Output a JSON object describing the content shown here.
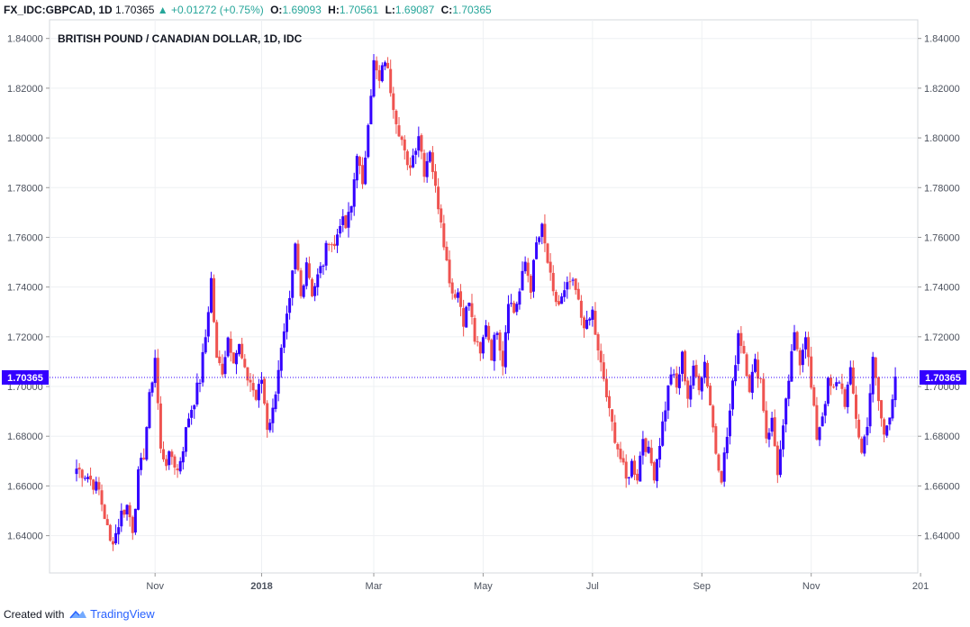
{
  "header": {
    "symbol": "FX_IDC:GBPCAD, 1D",
    "last": "1.70365",
    "arrow": "▲",
    "change": "+0.01272 (+0.75%)",
    "o_label": "O:",
    "o": "1.69093",
    "h_label": "H:",
    "h": "1.70561",
    "l_label": "L:",
    "l": "1.69087",
    "c_label": "C:",
    "c": "1.70365"
  },
  "footer": {
    "created": "Created with",
    "brand": "TradingView"
  },
  "chart_data": {
    "type": "candlestick",
    "title": "BRITISH POUND / CANADIAN DOLLAR, 1D, IDC",
    "ylim": [
      1.625,
      1.8475
    ],
    "yticks": [
      "1.64000",
      "1.66000",
      "1.68000",
      "1.70000",
      "1.72000",
      "1.74000",
      "1.76000",
      "1.78000",
      "1.80000",
      "1.82000",
      "1.84000"
    ],
    "xlim": [
      0,
      300
    ],
    "xticks": [
      {
        "label": "Nov",
        "x": 28
      },
      {
        "label": "2018",
        "x": 66
      },
      {
        "label": "Mar",
        "x": 106
      },
      {
        "label": "May",
        "x": 145
      },
      {
        "label": "Jul",
        "x": 184
      },
      {
        "label": "Sep",
        "x": 223
      },
      {
        "label": "Nov",
        "x": 262
      },
      {
        "label": "201",
        "x": 301
      }
    ],
    "current_price": "1.70365",
    "current_value": 1.70365,
    "up_color": "#3300ff",
    "down_color": "#ef5350",
    "grid": true,
    "path": [
      [
        0,
        1.667
      ],
      [
        4,
        1.664
      ],
      [
        8,
        1.658
      ],
      [
        10,
        1.648
      ],
      [
        12,
        1.637
      ],
      [
        14,
        1.641
      ],
      [
        16,
        1.649
      ],
      [
        18,
        1.652
      ],
      [
        20,
        1.643
      ],
      [
        22,
        1.664
      ],
      [
        24,
        1.673
      ],
      [
        26,
        1.695
      ],
      [
        28,
        1.712
      ],
      [
        30,
        1.674
      ],
      [
        32,
        1.67
      ],
      [
        34,
        1.672
      ],
      [
        36,
        1.666
      ],
      [
        38,
        1.676
      ],
      [
        40,
        1.688
      ],
      [
        42,
        1.695
      ],
      [
        44,
        1.703
      ],
      [
        46,
        1.72
      ],
      [
        48,
        1.743
      ],
      [
        50,
        1.71
      ],
      [
        52,
        1.707
      ],
      [
        54,
        1.72
      ],
      [
        56,
        1.712
      ],
      [
        58,
        1.716
      ],
      [
        60,
        1.705
      ],
      [
        62,
        1.702
      ],
      [
        64,
        1.695
      ],
      [
        66,
        1.703
      ],
      [
        68,
        1.684
      ],
      [
        70,
        1.69
      ],
      [
        72,
        1.708
      ],
      [
        74,
        1.72
      ],
      [
        76,
        1.733
      ],
      [
        78,
        1.756
      ],
      [
        80,
        1.736
      ],
      [
        82,
        1.751
      ],
      [
        84,
        1.738
      ],
      [
        86,
        1.744
      ],
      [
        88,
        1.75
      ],
      [
        90,
        1.76
      ],
      [
        92,
        1.756
      ],
      [
        94,
        1.767
      ],
      [
        96,
        1.764
      ],
      [
        98,
        1.772
      ],
      [
        100,
        1.795
      ],
      [
        102,
        1.779
      ],
      [
        104,
        1.808
      ],
      [
        106,
        1.83
      ],
      [
        108,
        1.822
      ],
      [
        110,
        1.832
      ],
      [
        112,
        1.82
      ],
      [
        114,
        1.808
      ],
      [
        116,
        1.799
      ],
      [
        118,
        1.787
      ],
      [
        120,
        1.793
      ],
      [
        122,
        1.802
      ],
      [
        124,
        1.787
      ],
      [
        126,
        1.796
      ],
      [
        128,
        1.779
      ],
      [
        130,
        1.768
      ],
      [
        132,
        1.75
      ],
      [
        134,
        1.738
      ],
      [
        136,
        1.738
      ],
      [
        138,
        1.727
      ],
      [
        140,
        1.734
      ],
      [
        142,
        1.719
      ],
      [
        144,
        1.712
      ],
      [
        146,
        1.726
      ],
      [
        148,
        1.713
      ],
      [
        150,
        1.724
      ],
      [
        152,
        1.71
      ],
      [
        154,
        1.736
      ],
      [
        156,
        1.73
      ],
      [
        158,
        1.738
      ],
      [
        160,
        1.75
      ],
      [
        162,
        1.74
      ],
      [
        164,
        1.757
      ],
      [
        166,
        1.763
      ],
      [
        168,
        1.75
      ],
      [
        170,
        1.736
      ],
      [
        172,
        1.733
      ],
      [
        174,
        1.737
      ],
      [
        176,
        1.742
      ],
      [
        178,
        1.738
      ],
      [
        180,
        1.728
      ],
      [
        182,
        1.724
      ],
      [
        184,
        1.73
      ],
      [
        186,
        1.713
      ],
      [
        188,
        1.703
      ],
      [
        190,
        1.689
      ],
      [
        192,
        1.68
      ],
      [
        194,
        1.671
      ],
      [
        196,
        1.662
      ],
      [
        198,
        1.669
      ],
      [
        200,
        1.664
      ],
      [
        202,
        1.68
      ],
      [
        204,
        1.673
      ],
      [
        206,
        1.665
      ],
      [
        208,
        1.678
      ],
      [
        210,
        1.692
      ],
      [
        212,
        1.706
      ],
      [
        214,
        1.699
      ],
      [
        216,
        1.712
      ],
      [
        218,
        1.696
      ],
      [
        220,
        1.706
      ],
      [
        222,
        1.701
      ],
      [
        224,
        1.71
      ],
      [
        226,
        1.693
      ],
      [
        228,
        1.674
      ],
      [
        230,
        1.664
      ],
      [
        232,
        1.68
      ],
      [
        234,
        1.7
      ],
      [
        236,
        1.722
      ],
      [
        238,
        1.714
      ],
      [
        240,
        1.7
      ],
      [
        242,
        1.709
      ],
      [
        244,
        1.703
      ],
      [
        246,
        1.68
      ],
      [
        248,
        1.686
      ],
      [
        250,
        1.666
      ],
      [
        252,
        1.682
      ],
      [
        254,
        1.703
      ],
      [
        256,
        1.72
      ],
      [
        258,
        1.711
      ],
      [
        260,
        1.722
      ],
      [
        262,
        1.699
      ],
      [
        264,
        1.68
      ],
      [
        266,
        1.689
      ],
      [
        268,
        1.701
      ],
      [
        270,
        1.698
      ],
      [
        272,
        1.703
      ],
      [
        274,
        1.694
      ],
      [
        276,
        1.705
      ],
      [
        278,
        1.688
      ],
      [
        280,
        1.673
      ],
      [
        282,
        1.686
      ],
      [
        284,
        1.71
      ],
      [
        286,
        1.694
      ],
      [
        288,
        1.68
      ],
      [
        290,
        1.69
      ],
      [
        292,
        1.704
      ]
    ]
  }
}
